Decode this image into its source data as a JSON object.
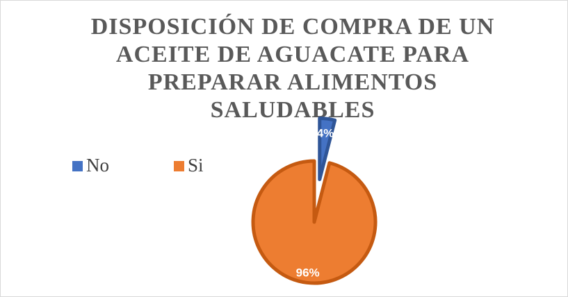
{
  "chart_data": {
    "type": "pie",
    "title": "DISPOSICIÓN DE COMPRA DE UN ACEITE DE AGUACATE PARA PREPARAR ALIMENTOS SALUDABLES",
    "categories": [
      "No",
      "Si"
    ],
    "values": [
      4,
      96
    ],
    "value_labels": [
      "4%",
      "96%"
    ],
    "colors": [
      "#4472c4",
      "#ed7d31"
    ],
    "legend": "left"
  }
}
